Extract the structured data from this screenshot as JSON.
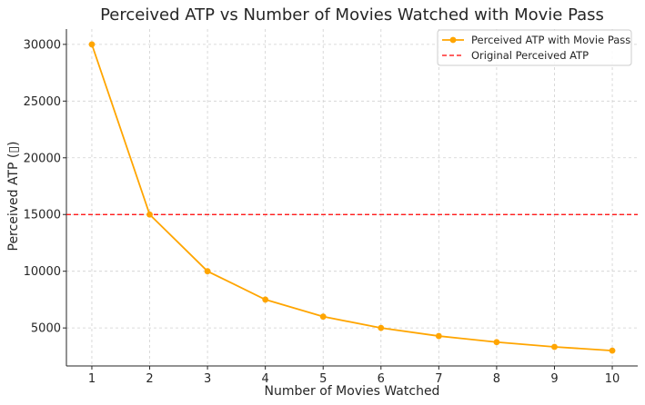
{
  "chart_data": {
    "type": "line",
    "title": "Perceived ATP vs Number of Movies Watched with Movie Pass",
    "xlabel": "Number of Movies Watched",
    "ylabel": "Perceived ATP (▯)",
    "x": [
      1,
      2,
      3,
      4,
      5,
      6,
      7,
      8,
      9,
      10
    ],
    "x_ticks": [
      1,
      2,
      3,
      4,
      5,
      6,
      7,
      8,
      9,
      10
    ],
    "y_ticks": [
      5000,
      10000,
      15000,
      20000,
      25000,
      30000
    ],
    "xlim": [
      0.56,
      10.44
    ],
    "ylim": [
      1650,
      31350
    ],
    "grid": true,
    "legend_position": "top-right",
    "series": [
      {
        "name": "Perceived ATP with Movie Pass",
        "values": [
          30000,
          15000,
          10000,
          7500,
          6000,
          5000,
          4285.71,
          3750,
          3333.33,
          3000
        ],
        "color": "#ffa500",
        "style": "solid",
        "marker": "circle"
      }
    ],
    "reference_lines": [
      {
        "name": "Original Perceived ATP",
        "value": 15000,
        "color": "#ff0000",
        "style": "dashed"
      }
    ]
  }
}
